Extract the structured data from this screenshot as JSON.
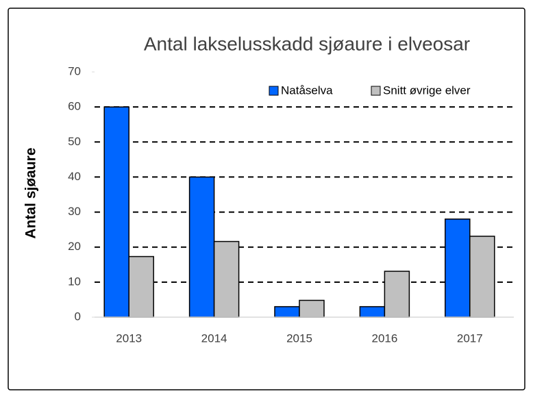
{
  "chart_data": {
    "type": "bar",
    "title": "Antal lakselusskadd sjøaure i elveosar",
    "y_label": "Antal sjøaure",
    "categories": [
      "2013",
      "2014",
      "2015",
      "2016",
      "2017"
    ],
    "series": [
      {
        "name": "Natåselva",
        "color": "#0066ff",
        "values": [
          60,
          40,
          3,
          3,
          28
        ]
      },
      {
        "name": "Snitt øvrige elver",
        "color": "#c0c0c0",
        "values": [
          17.3,
          21.6,
          4.8,
          13.1,
          23.1
        ]
      }
    ],
    "ylim": [
      0,
      70
    ],
    "yticks": [
      0,
      10,
      20,
      30,
      40,
      50,
      60,
      70
    ],
    "grid": true,
    "legend": "top-right"
  }
}
